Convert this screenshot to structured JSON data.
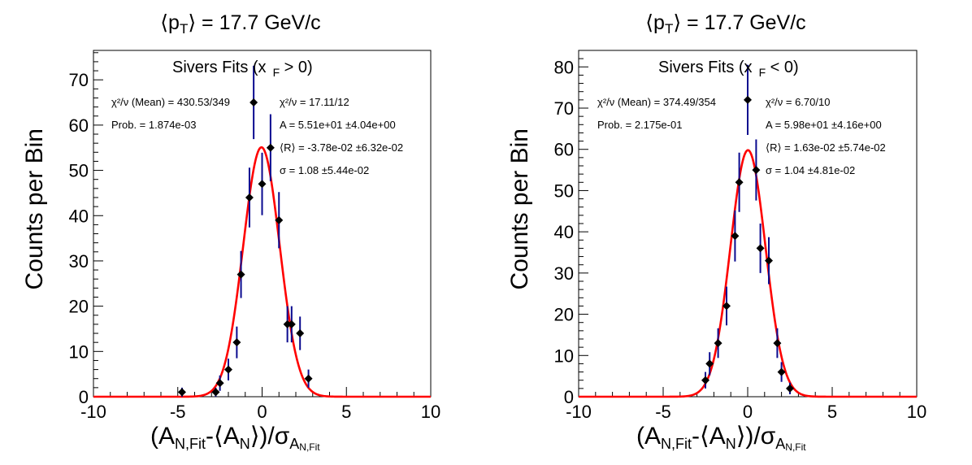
{
  "chart_data": [
    {
      "type": "scatter",
      "title": "⟨p_T⟩ = 17.7 GeV/c",
      "ylabel": "Counts per Bin",
      "xlabel": "(A_{N,Fit}-⟨A_N⟩)/σ_{A_{N,Fit}}",
      "xlim": [
        -10,
        10
      ],
      "ylim": [
        0,
        76.5
      ],
      "xticks": [
        -10,
        -5,
        0,
        5,
        10
      ],
      "yticks": [
        0,
        10,
        20,
        30,
        40,
        50,
        60,
        70
      ],
      "box": {
        "title_main": "Sivers Fits (x",
        "title_sub": "F",
        "title_tail": " > 0)",
        "lines_left": [
          "χ²/ν (Mean) = 430.53/349",
          "Prob. = 1.874e-03"
        ],
        "lines_right": [
          "χ²/ν = 17.11/12",
          "A = 5.51e+01 ±4.04e+00",
          "⟨R⟩ = -3.78e-02 ±6.32e-02",
          "σ = 1.08 ±5.44e-02"
        ]
      },
      "series": [
        {
          "points": [
            {
              "x": -4.75,
              "y": 1,
              "err": 1
            },
            {
              "x": -2.75,
              "y": 1,
              "err": 1
            },
            {
              "x": -2.5,
              "y": 3,
              "err": 1.7
            },
            {
              "x": -2.0,
              "y": 6,
              "err": 2.4
            },
            {
              "x": -1.5,
              "y": 12,
              "err": 3.5
            },
            {
              "x": -1.25,
              "y": 27,
              "err": 5.2
            },
            {
              "x": -0.75,
              "y": 44,
              "err": 6.6
            },
            {
              "x": -0.5,
              "y": 65,
              "err": 8.1
            },
            {
              "x": 0.0,
              "y": 47,
              "err": 6.9
            },
            {
              "x": 0.5,
              "y": 55,
              "err": 7.4
            },
            {
              "x": 1.0,
              "y": 39,
              "err": 6.2
            },
            {
              "x": 1.5,
              "y": 16,
              "err": 4
            },
            {
              "x": 1.75,
              "y": 16,
              "err": 4
            },
            {
              "x": 2.25,
              "y": 14,
              "err": 3.7
            },
            {
              "x": 2.75,
              "y": 4,
              "err": 2
            }
          ]
        }
      ],
      "fit": {
        "A": 55.1,
        "mean": -0.0378,
        "sigma": 1.08,
        "color": "#ff0000"
      }
    },
    {
      "type": "scatter",
      "title": "⟨p_T⟩ = 17.7 GeV/c",
      "ylabel": "Counts per Bin",
      "xlabel": "(A_{N,Fit}-⟨A_N⟩)/σ_{A_{N,Fit}}",
      "xlim": [
        -10,
        10
      ],
      "ylim": [
        0,
        84
      ],
      "xticks": [
        -10,
        -5,
        0,
        5,
        10
      ],
      "yticks": [
        0,
        10,
        20,
        30,
        40,
        50,
        60,
        70,
        80
      ],
      "box": {
        "title_main": "Sivers Fits (x",
        "title_sub": "F",
        "title_tail": " < 0)",
        "lines_left": [
          "χ²/ν (Mean) = 374.49/354",
          "Prob. = 2.175e-01"
        ],
        "lines_right": [
          "χ²/ν = 6.70/10",
          "A = 5.98e+01 ±4.16e+00",
          "⟨R⟩ = 1.63e-02 ±5.74e-02",
          "σ = 1.04 ±4.81e-02"
        ]
      },
      "series": [
        {
          "points": [
            {
              "x": -2.5,
              "y": 4,
              "err": 2
            },
            {
              "x": -2.25,
              "y": 8,
              "err": 2.8
            },
            {
              "x": -1.75,
              "y": 13,
              "err": 3.6
            },
            {
              "x": -1.25,
              "y": 22,
              "err": 4.7
            },
            {
              "x": -0.75,
              "y": 39,
              "err": 6.2
            },
            {
              "x": -0.5,
              "y": 52,
              "err": 7.2
            },
            {
              "x": 0.0,
              "y": 72,
              "err": 8.5
            },
            {
              "x": 0.5,
              "y": 55,
              "err": 7.4
            },
            {
              "x": 0.75,
              "y": 36,
              "err": 6
            },
            {
              "x": 1.25,
              "y": 33,
              "err": 5.7
            },
            {
              "x": 1.75,
              "y": 13,
              "err": 3.6
            },
            {
              "x": 2.0,
              "y": 6,
              "err": 2.4
            },
            {
              "x": 2.5,
              "y": 2,
              "err": 1.4
            }
          ]
        }
      ],
      "fit": {
        "A": 59.8,
        "mean": 0.0163,
        "sigma": 1.04,
        "color": "#ff0000"
      }
    }
  ],
  "colors": {
    "error_bar": "#0a0a8f",
    "marker": "#000000",
    "fit": "#ff0000"
  }
}
